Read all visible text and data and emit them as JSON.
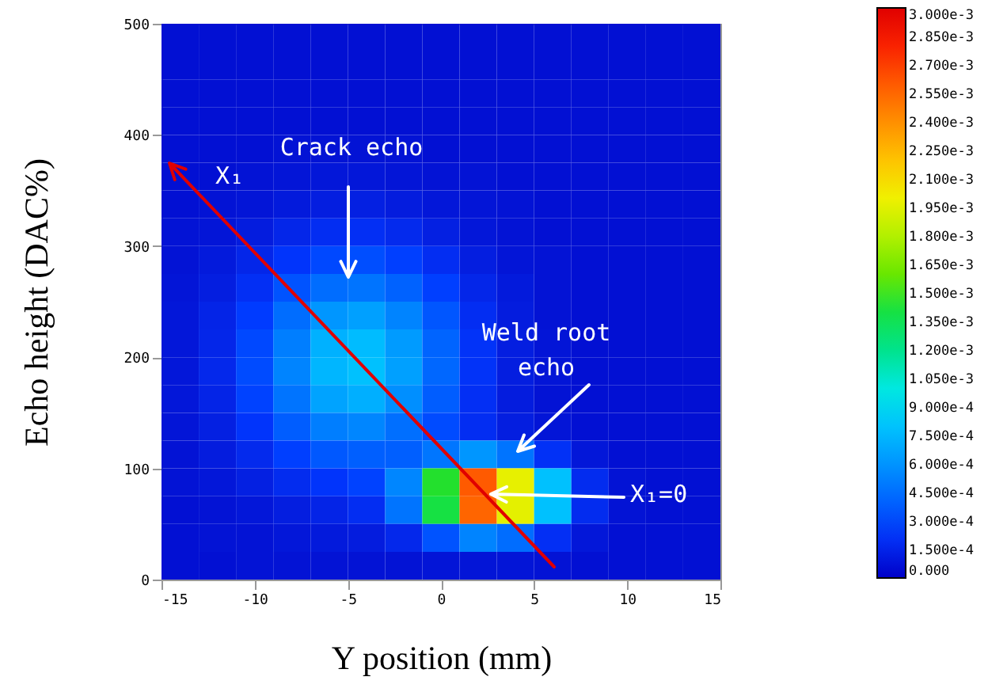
{
  "chart_data": {
    "type": "heatmap",
    "xlabel": "Y position (mm)",
    "ylabel": "Echo height (DAC%)",
    "xlim": [
      -15,
      15
    ],
    "xticks": [
      -15,
      -10,
      -5,
      0,
      5,
      10,
      15
    ],
    "ylim": [
      0,
      500
    ],
    "yticks": [
      0,
      100,
      200,
      300,
      400,
      500
    ],
    "cells": [
      [
        5e-05,
        5e-05,
        5e-05,
        5e-05,
        5e-05,
        5e-05,
        5e-05,
        5e-05,
        5e-05,
        5e-05,
        5e-05,
        5e-05,
        5e-05,
        5e-05,
        5e-05
      ],
      [
        5e-05,
        5e-05,
        5e-05,
        5e-05,
        5e-05,
        5e-05,
        5e-05,
        5e-05,
        5e-05,
        5e-05,
        5e-05,
        5e-05,
        5e-05,
        5e-05,
        5e-05
      ],
      [
        5e-05,
        5e-05,
        5e-05,
        5e-05,
        5e-05,
        5e-05,
        5e-05,
        5e-05,
        5e-05,
        5e-05,
        5e-05,
        5e-05,
        5e-05,
        5e-05,
        5e-05
      ],
      [
        5e-05,
        5e-05,
        5e-05,
        5e-05,
        5e-05,
        5e-05,
        5e-05,
        5e-05,
        5e-05,
        5e-05,
        5e-05,
        5e-05,
        5e-05,
        5e-05,
        5e-05
      ],
      [
        5e-05,
        5e-05,
        5e-05,
        6e-05,
        6e-05,
        6e-05,
        6e-05,
        5e-05,
        5e-05,
        5e-05,
        5e-05,
        5e-05,
        5e-05,
        5e-05,
        5e-05
      ],
      [
        5e-05,
        5e-05,
        6e-05,
        7e-05,
        8e-05,
        8e-05,
        7e-05,
        6e-05,
        6e-05,
        5e-05,
        5e-05,
        5e-05,
        5e-05,
        5e-05,
        5e-05
      ],
      [
        5e-05,
        6e-05,
        7e-05,
        9e-05,
        0.00011,
        0.00012,
        0.0001,
        8e-05,
        7e-05,
        6e-05,
        5e-05,
        5e-05,
        5e-05,
        5e-05,
        5e-05
      ],
      [
        6e-05,
        7e-05,
        0.0001,
        0.00015,
        0.00019,
        0.0002,
        0.00017,
        0.00012,
        8e-05,
        6e-05,
        5e-05,
        5e-05,
        5e-05,
        5e-05,
        5e-05
      ],
      [
        6e-05,
        9e-05,
        0.00015,
        0.00023,
        0.0003,
        0.00032,
        0.00027,
        0.00019,
        0.00011,
        7e-05,
        6e-05,
        5e-05,
        5e-05,
        5e-05,
        5e-05
      ],
      [
        7e-05,
        0.00011,
        0.0002,
        0.00034,
        0.00045,
        0.00048,
        0.0004,
        0.00027,
        0.00015,
        9e-05,
        6e-05,
        5e-05,
        5e-05,
        5e-05,
        5e-05
      ],
      [
        8e-05,
        0.00014,
        0.00026,
        0.00045,
        0.00061,
        0.00065,
        0.00054,
        0.00035,
        0.00019,
        0.0001,
        6e-05,
        5e-05,
        5e-05,
        5e-05,
        5e-05
      ],
      [
        8e-05,
        0.00015,
        0.0003,
        0.00052,
        0.00072,
        0.00077,
        0.00063,
        0.00041,
        0.00022,
        0.00011,
        7e-05,
        5e-05,
        5e-05,
        5e-05,
        5e-05
      ],
      [
        8e-05,
        0.00016,
        0.00031,
        0.00054,
        0.00074,
        0.00079,
        0.00065,
        0.00042,
        0.00022,
        0.00011,
        7e-05,
        5e-05,
        5e-05,
        5e-05,
        5e-05
      ],
      [
        8e-05,
        0.00014,
        0.00028,
        0.00048,
        0.00066,
        0.00071,
        0.00058,
        0.00038,
        0.0002,
        0.0001,
        6e-05,
        5e-05,
        5e-05,
        5e-05,
        5e-05
      ],
      [
        7e-05,
        0.00012,
        0.00023,
        0.00038,
        0.00052,
        0.00055,
        0.00046,
        0.00031,
        0.00019,
        0.00011,
        7e-05,
        5e-05,
        5e-05,
        5e-05,
        5e-05
      ],
      [
        6e-05,
        0.0001,
        0.00017,
        0.00027,
        0.00036,
        0.00039,
        0.00039,
        0.00049,
        0.00061,
        0.00048,
        0.00021,
        8e-05,
        5e-05,
        5e-05,
        5e-05
      ],
      [
        6e-05,
        8e-05,
        0.00012,
        0.00018,
        0.00023,
        0.00028,
        0.00055,
        0.00145,
        0.0026,
        0.00197,
        0.00079,
        0.00018,
        6e-05,
        5e-05,
        5e-05
      ],
      [
        5e-05,
        6e-05,
        8e-05,
        0.00011,
        0.00014,
        0.00019,
        0.00048,
        0.0014,
        0.00255,
        0.00196,
        0.00079,
        0.00018,
        6e-05,
        5e-05,
        5e-05
      ],
      [
        5e-05,
        6e-05,
        6e-05,
        8e-05,
        9e-05,
        0.0001,
        0.00016,
        0.00034,
        0.00054,
        0.00045,
        0.0002,
        8e-05,
        5e-05,
        5e-05,
        5e-05
      ],
      [
        5e-05,
        5e-05,
        6e-05,
        6e-05,
        6e-05,
        6e-05,
        6e-05,
        7e-05,
        7e-05,
        7e-05,
        6e-05,
        5e-05,
        5e-05,
        5e-05,
        5e-05
      ]
    ],
    "clim": [
      0,
      0.003
    ],
    "cticks": [
      {
        "value": 0,
        "label": "0.000"
      },
      {
        "value": 0.00015,
        "label": "1.500e-4"
      },
      {
        "value": 0.0003,
        "label": "3.000e-4"
      },
      {
        "value": 0.00045,
        "label": "4.500e-4"
      },
      {
        "value": 0.0006,
        "label": "6.000e-4"
      },
      {
        "value": 0.00075,
        "label": "7.500e-4"
      },
      {
        "value": 0.0009,
        "label": "9.000e-4"
      },
      {
        "value": 0.00105,
        "label": "1.050e-3"
      },
      {
        "value": 0.0012,
        "label": "1.200e-3"
      },
      {
        "value": 0.00135,
        "label": "1.350e-3"
      },
      {
        "value": 0.0015,
        "label": "1.500e-3"
      },
      {
        "value": 0.00165,
        "label": "1.650e-3"
      },
      {
        "value": 0.0018,
        "label": "1.800e-3"
      },
      {
        "value": 0.00195,
        "label": "1.950e-3"
      },
      {
        "value": 0.0021,
        "label": "2.100e-3"
      },
      {
        "value": 0.00225,
        "label": "2.250e-3"
      },
      {
        "value": 0.0024,
        "label": "2.400e-3"
      },
      {
        "value": 0.00255,
        "label": "2.550e-3"
      },
      {
        "value": 0.0027,
        "label": "2.700e-3"
      },
      {
        "value": 0.00285,
        "label": "2.850e-3"
      },
      {
        "value": 0.003,
        "label": "3.000e-3"
      }
    ],
    "annotations": [
      "Crack echo",
      "Weld root echo",
      "X₁=0",
      "X₁"
    ]
  }
}
